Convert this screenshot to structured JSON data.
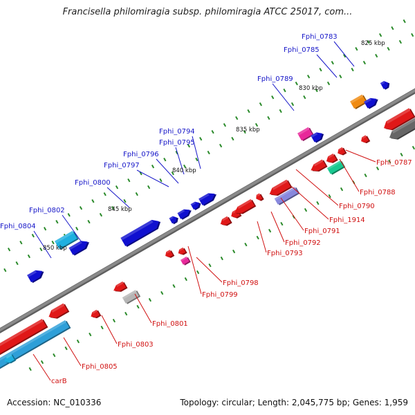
{
  "header": {
    "title": "Francisella philomiragia subsp. philomiragia ATCC 25017, com..."
  },
  "footer": {
    "accession": "Accession: NC_010336",
    "topology": "Topology: circular; Length: 2,045,775 bp; Genes: 1,959"
  },
  "colors": {
    "plus_label": "#1515c8",
    "minus_label": "#d01010",
    "backbone": "#8a8a8a",
    "tick": "#2a8a2a"
  },
  "scale_labels": [
    "825 kbp",
    "830 kbp",
    "835 kbp",
    "840 kbp",
    "845 kbp",
    "850 kbp"
  ],
  "plus_labels": [
    "Fphi_0783",
    "Fphi_0785",
    "Fphi_0789",
    "Fphi_0794",
    "Fphi_0795",
    "Fphi_0796",
    "Fphi_0797",
    "Fphi_0800",
    "Fphi_0802",
    "Fphi_0804"
  ],
  "minus_labels": [
    "Fphi_0787",
    "Fphi_0788",
    "Fphi_0790",
    "Fphi_1914",
    "Fphi_0791",
    "Fphi_0792",
    "Fphi_0793",
    "Fphi_0798",
    "Fphi_0799",
    "Fphi_0801",
    "Fphi_0803",
    "Fphi_0805",
    "carB"
  ]
}
